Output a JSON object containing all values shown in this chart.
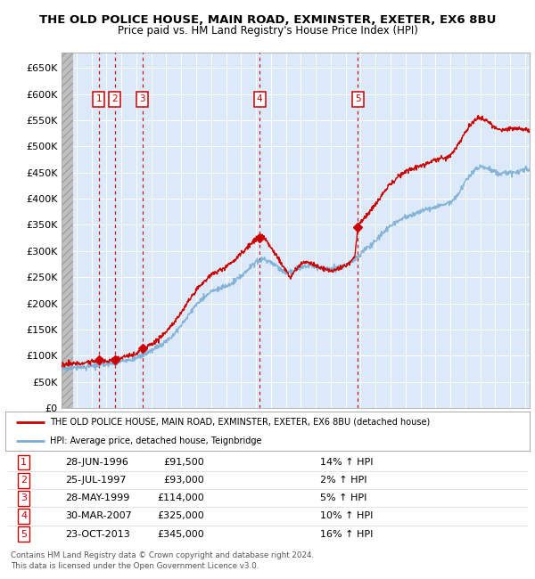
{
  "title": "THE OLD POLICE HOUSE, MAIN ROAD, EXMINSTER, EXETER, EX6 8BU",
  "subtitle": "Price paid vs. HM Land Registry's House Price Index (HPI)",
  "xlim_start": 1994.0,
  "xlim_end": 2025.3,
  "ylim": [
    0,
    680000
  ],
  "yticks": [
    0,
    50000,
    100000,
    150000,
    200000,
    250000,
    300000,
    350000,
    400000,
    450000,
    500000,
    550000,
    600000,
    650000
  ],
  "ytick_labels": [
    "£0",
    "£50K",
    "£100K",
    "£150K",
    "£200K",
    "£250K",
    "£300K",
    "£350K",
    "£400K",
    "£450K",
    "£500K",
    "£550K",
    "£600K",
    "£650K"
  ],
  "plot_bg_color": "#dce9f8",
  "grid_color": "#ffffff",
  "sale_color": "#cc0000",
  "hpi_color": "#7badd4",
  "transactions": [
    {
      "num": 1,
      "x": 1996.49,
      "price": 91500
    },
    {
      "num": 2,
      "x": 1997.57,
      "price": 93000
    },
    {
      "num": 3,
      "x": 1999.41,
      "price": 114000
    },
    {
      "num": 4,
      "x": 2007.25,
      "price": 325000
    },
    {
      "num": 5,
      "x": 2013.81,
      "price": 345000
    }
  ],
  "legend_label1": "THE OLD POLICE HOUSE, MAIN ROAD, EXMINSTER, EXETER, EX6 8BU (detached house)",
  "legend_label2": "HPI: Average price, detached house, Teignbridge",
  "footer1": "Contains HM Land Registry data © Crown copyright and database right 2024.",
  "footer2": "This data is licensed under the Open Government Licence v3.0.",
  "table_rows": [
    [
      1,
      "28-JUN-1996",
      "£91,500",
      "14% ↑ HPI"
    ],
    [
      2,
      "25-JUL-1997",
      "£93,000",
      "2% ↑ HPI"
    ],
    [
      3,
      "28-MAY-1999",
      "£114,000",
      "5% ↑ HPI"
    ],
    [
      4,
      "30-MAR-2007",
      "£325,000",
      "10% ↑ HPI"
    ],
    [
      5,
      "23-OCT-2013",
      "£345,000",
      "16% ↑ HPI"
    ]
  ]
}
